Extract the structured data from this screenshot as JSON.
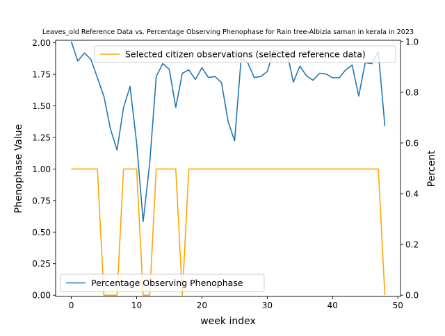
{
  "chart_data": {
    "type": "line",
    "title": "Leaves_old Reference Data vs. Percentage Observing Phenophase for Rain tree-Albizia saman in kerala in 2023",
    "xlabel": "week index",
    "ylabel_left": "Phenophase Value",
    "ylabel_right": "Percent",
    "xlim": [
      -2.4,
      50.4
    ],
    "ylim_left": [
      -0.01,
      2.02
    ],
    "ylim_right": [
      -0.005,
      1.005
    ],
    "xticks": [
      0,
      10,
      20,
      30,
      40,
      50
    ],
    "yticks_left": [
      "0.00",
      "0.25",
      "0.50",
      "0.75",
      "1.00",
      "1.25",
      "1.50",
      "1.75",
      "2.00"
    ],
    "yticks_right": [
      "0.0",
      "0.2",
      "0.4",
      "0.6",
      "0.8",
      "1.0"
    ],
    "grid": false,
    "series": [
      {
        "name": "Selected citizen observations (selected reference data)",
        "axis": "left",
        "color": "#ffa500",
        "legend_position": "upper right",
        "points": [
          [
            0,
            1
          ],
          [
            1,
            1
          ],
          [
            2,
            1
          ],
          [
            3,
            1
          ],
          [
            4,
            1
          ],
          [
            5,
            0
          ],
          [
            6,
            0
          ],
          [
            7,
            0
          ],
          [
            8,
            1
          ],
          [
            9,
            1
          ],
          [
            10,
            1
          ],
          [
            11,
            0
          ],
          [
            12,
            0
          ],
          [
            13,
            1
          ],
          [
            14,
            1
          ],
          [
            15,
            1
          ],
          [
            16,
            1
          ],
          [
            17,
            0
          ],
          [
            18,
            1
          ],
          [
            19,
            1
          ],
          [
            20,
            1
          ],
          [
            21,
            1
          ],
          [
            22,
            1
          ],
          [
            23,
            1
          ],
          [
            24,
            1
          ],
          [
            25,
            1
          ],
          [
            26,
            1
          ],
          [
            27,
            1
          ],
          [
            28,
            1
          ],
          [
            29,
            1
          ],
          [
            30,
            1
          ],
          [
            31,
            1
          ],
          [
            32,
            1
          ],
          [
            33,
            1
          ],
          [
            34,
            1
          ],
          [
            35,
            1
          ],
          [
            36,
            1
          ],
          [
            37,
            1
          ],
          [
            38,
            1
          ],
          [
            39,
            1
          ],
          [
            40,
            1
          ],
          [
            41,
            1
          ],
          [
            42,
            1
          ],
          [
            43,
            1
          ],
          [
            44,
            1
          ],
          [
            45,
            1
          ],
          [
            46,
            1
          ],
          [
            47,
            1
          ],
          [
            48,
            0
          ]
        ]
      },
      {
        "name": "Percentage Observing Phenophase",
        "axis": "right",
        "color": "#1f77b4",
        "legend_position": "lower left",
        "points": [
          [
            0,
            1.0
          ],
          [
            1,
            0.923
          ],
          [
            2,
            0.955
          ],
          [
            3,
            0.93
          ],
          [
            4,
            0.857
          ],
          [
            5,
            0.783
          ],
          [
            6,
            0.655
          ],
          [
            7,
            0.572
          ],
          [
            8,
            0.74
          ],
          [
            9,
            0.823
          ],
          [
            10,
            0.6
          ],
          [
            11,
            0.29
          ],
          [
            12,
            0.52
          ],
          [
            13,
            0.862
          ],
          [
            14,
            0.913
          ],
          [
            15,
            0.89
          ],
          [
            16,
            0.74
          ],
          [
            17,
            0.875
          ],
          [
            18,
            0.888
          ],
          [
            19,
            0.85
          ],
          [
            20,
            0.897
          ],
          [
            21,
            0.858
          ],
          [
            22,
            0.862
          ],
          [
            23,
            0.838
          ],
          [
            24,
            0.685
          ],
          [
            25,
            0.608
          ],
          [
            26,
            0.933
          ],
          [
            27,
            0.917
          ],
          [
            28,
            0.858
          ],
          [
            29,
            0.862
          ],
          [
            30,
            0.882
          ],
          [
            31,
            0.965
          ],
          [
            32,
            0.96
          ],
          [
            33,
            0.96
          ],
          [
            34,
            0.84
          ],
          [
            35,
            0.903
          ],
          [
            36,
            0.865
          ],
          [
            37,
            0.847
          ],
          [
            38,
            0.875
          ],
          [
            39,
            0.872
          ],
          [
            40,
            0.857
          ],
          [
            41,
            0.857
          ],
          [
            42,
            0.888
          ],
          [
            43,
            0.907
          ],
          [
            44,
            0.785
          ],
          [
            45,
            0.917
          ],
          [
            46,
            0.913
          ],
          [
            47,
            0.96
          ],
          [
            48,
            0.667
          ]
        ]
      }
    ]
  }
}
